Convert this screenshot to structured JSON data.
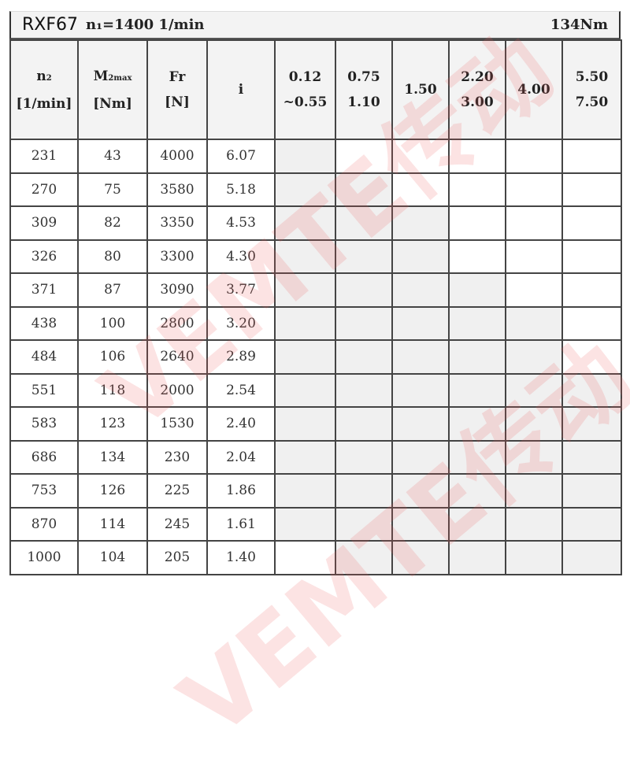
{
  "title": {
    "model": "RXF67",
    "speed": "n₁=1400 1/min",
    "torque": "134Nm"
  },
  "headers": {
    "n2": {
      "symbol": "n",
      "sub": "2",
      "unit": "[1/min]"
    },
    "m2": {
      "symbol": "M",
      "sub": "2max",
      "unit": "[Nm]"
    },
    "fr": {
      "symbol": "Fr",
      "unit": "[N]"
    },
    "i": {
      "symbol": "i"
    },
    "power": [
      [
        "0.12",
        "~0.55"
      ],
      [
        "0.75",
        "1.10"
      ],
      [
        "1.50",
        ""
      ],
      [
        "2.20",
        "3.00"
      ],
      [
        "4.00",
        ""
      ],
      [
        "5.50",
        "7.50"
      ]
    ]
  },
  "rows": [
    {
      "n2": "231",
      "m2": "43",
      "fr": "4000",
      "i": "6.07",
      "avail": [
        1,
        0,
        0,
        0,
        0,
        0
      ]
    },
    {
      "n2": "270",
      "m2": "75",
      "fr": "3580",
      "i": "5.18",
      "avail": [
        1,
        1,
        0,
        0,
        0,
        0
      ]
    },
    {
      "n2": "309",
      "m2": "82",
      "fr": "3350",
      "i": "4.53",
      "avail": [
        1,
        1,
        1,
        0,
        0,
        0
      ]
    },
    {
      "n2": "326",
      "m2": "80",
      "fr": "3300",
      "i": "4.30",
      "avail": [
        1,
        1,
        1,
        0,
        0,
        0
      ]
    },
    {
      "n2": "371",
      "m2": "87",
      "fr": "3090",
      "i": "3.77",
      "avail": [
        1,
        1,
        1,
        1,
        0,
        0
      ]
    },
    {
      "n2": "438",
      "m2": "100",
      "fr": "2800",
      "i": "3.20",
      "avail": [
        1,
        1,
        1,
        1,
        1,
        0
      ]
    },
    {
      "n2": "484",
      "m2": "106",
      "fr": "2640",
      "i": "2.89",
      "avail": [
        1,
        1,
        1,
        1,
        1,
        0
      ]
    },
    {
      "n2": "551",
      "m2": "118",
      "fr": "2000",
      "i": "2.54",
      "avail": [
        1,
        1,
        1,
        1,
        1,
        1
      ]
    },
    {
      "n2": "583",
      "m2": "123",
      "fr": "1530",
      "i": "2.40",
      "avail": [
        1,
        1,
        1,
        1,
        1,
        1
      ]
    },
    {
      "n2": "686",
      "m2": "134",
      "fr": "230",
      "i": "2.04",
      "avail": [
        1,
        1,
        1,
        1,
        1,
        1
      ]
    },
    {
      "n2": "753",
      "m2": "126",
      "fr": "225",
      "i": "1.86",
      "avail": [
        1,
        1,
        1,
        1,
        1,
        1
      ]
    },
    {
      "n2": "870",
      "m2": "114",
      "fr": "245",
      "i": "1.61",
      "avail": [
        1,
        1,
        1,
        1,
        1,
        1
      ]
    },
    {
      "n2": "1000",
      "m2": "104",
      "fr": "205",
      "i": "1.40",
      "avail": [
        0,
        1,
        1,
        1,
        1,
        1
      ]
    }
  ],
  "watermark": "VEMTE传动",
  "colors": {
    "shaded": "#f0f0f0",
    "watermark": "#f05a5a"
  }
}
